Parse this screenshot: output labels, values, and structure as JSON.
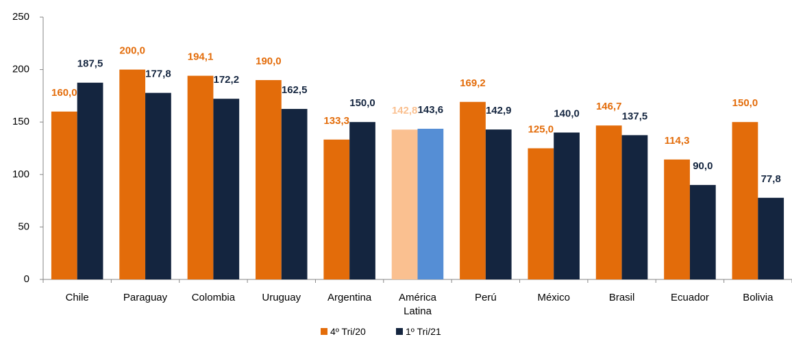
{
  "chart_data": {
    "type": "bar",
    "categories": [
      "Chile",
      "Paraguay",
      "Colombia",
      "Uruguay",
      "Argentina",
      "América Latina",
      "Perú",
      "México",
      "Brasil",
      "Ecuador",
      "Bolivia"
    ],
    "series": [
      {
        "name": "4º Tri/20",
        "color": "#e36c0a",
        "colors": [
          "#e36c0a",
          "#e36c0a",
          "#e36c0a",
          "#e36c0a",
          "#e36c0a",
          "#fac090",
          "#e36c0a",
          "#e36c0a",
          "#e36c0a",
          "#e36c0a",
          "#e36c0a"
        ],
        "values": [
          160.0,
          200.0,
          194.1,
          190.0,
          133.3,
          142.8,
          169.2,
          125.0,
          146.7,
          114.3,
          150.0
        ],
        "value_labels": [
          "160,0",
          "200,0",
          "194,1",
          "190,0",
          "133,3",
          "142,8",
          "169,2",
          "125,0",
          "146,7",
          "114,3",
          "150,0"
        ]
      },
      {
        "name": "1º Tri/21",
        "color": "#14253f",
        "colors": [
          "#14253f",
          "#14253f",
          "#14253f",
          "#14253f",
          "#14253f",
          "#558ed5",
          "#14253f",
          "#14253f",
          "#14253f",
          "#14253f",
          "#14253f"
        ],
        "values": [
          187.5,
          177.8,
          172.2,
          162.5,
          150.0,
          143.6,
          142.9,
          140.0,
          137.5,
          90.0,
          77.8
        ],
        "value_labels": [
          "187,5",
          "177,8",
          "172,2",
          "162,5",
          "150,0",
          "143,6",
          "142,9",
          "140,0",
          "137,5",
          "90,0",
          "77,8"
        ]
      }
    ],
    "ylim": [
      0,
      250
    ],
    "yticks": [
      0,
      50,
      100,
      150,
      200,
      250
    ],
    "legend": "bottom"
  }
}
